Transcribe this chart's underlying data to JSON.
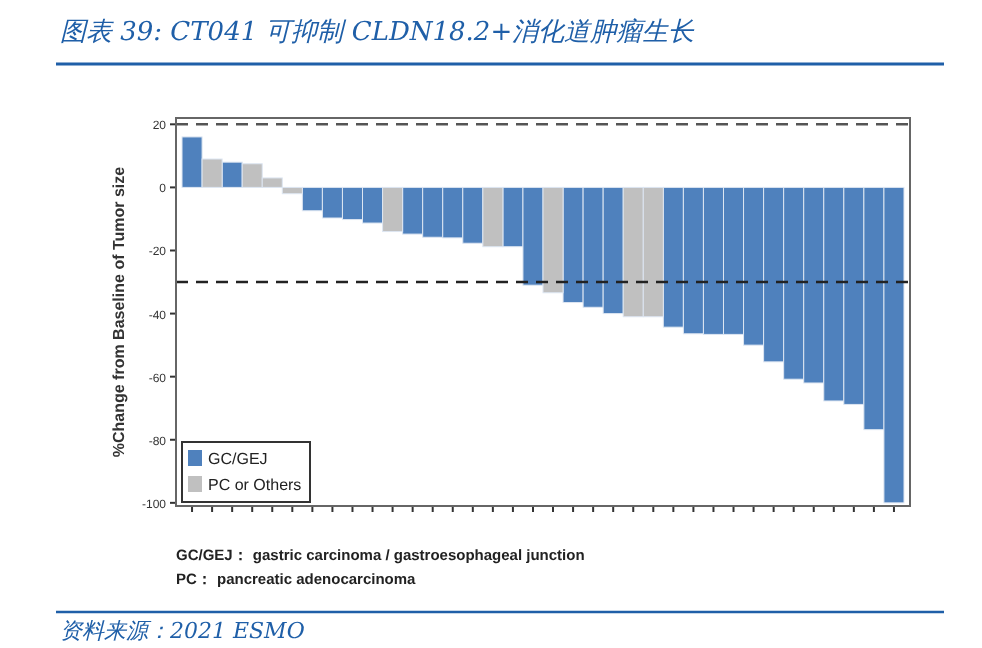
{
  "chart_data": {
    "type": "bar",
    "title": "图表 39: CT041 可抑制 CLDN18.2+消化道肿瘤生长",
    "ylabel": "%Change from Baseline of Tumor size",
    "categories": [
      null,
      null,
      null,
      null,
      null,
      null,
      null,
      null,
      null,
      null,
      null,
      null,
      null,
      null,
      null,
      null,
      null,
      null,
      null,
      null,
      null,
      null,
      null,
      null,
      null,
      null,
      null,
      null,
      null,
      null,
      null,
      null,
      null,
      null,
      null,
      null
    ],
    "series": [
      {
        "name": "GC/GEJ",
        "color": "#4f81bd",
        "values": [
          16,
          null,
          8,
          null,
          null,
          null,
          -7.4,
          -9.7,
          -10.2,
          -11.3,
          null,
          -14.8,
          -15.8,
          -16,
          -17.7,
          null,
          -18.8,
          -31,
          null,
          -36.5,
          -38,
          -40,
          null,
          null,
          -44.3,
          -46.4,
          -46.6,
          -46.6,
          -50,
          -55.3,
          -60.8,
          -62,
          -67.7,
          -68.8,
          -76.8,
          -100
        ]
      },
      {
        "name": "PC or Others",
        "color": "#c0c0c0",
        "values": [
          null,
          9,
          null,
          7.5,
          3,
          -2,
          null,
          null,
          null,
          null,
          -14,
          null,
          null,
          null,
          null,
          -18.8,
          null,
          null,
          -33.4,
          null,
          null,
          null,
          -41,
          -41,
          null,
          null,
          null,
          null,
          null,
          null,
          null,
          null,
          null,
          null,
          null,
          null
        ]
      }
    ],
    "ylim": [
      -101,
      22
    ],
    "yticks": [
      20,
      0,
      -20,
      -40,
      -60,
      -80,
      -100
    ],
    "ref_lines": [
      {
        "axis": "y",
        "value": 20,
        "color": "#555555",
        "line_style": "dashed"
      },
      {
        "axis": "y",
        "value": -30,
        "color": "#222222",
        "line_style": "dashed"
      }
    ],
    "legend": "bottom left",
    "annotations": [
      "GC/GEJ：  gastric carcinoma / gastroesophageal junction",
      "PC：  pancreatic adenocarcinoma",
      "资料来源：2021 ESMO"
    ]
  }
}
